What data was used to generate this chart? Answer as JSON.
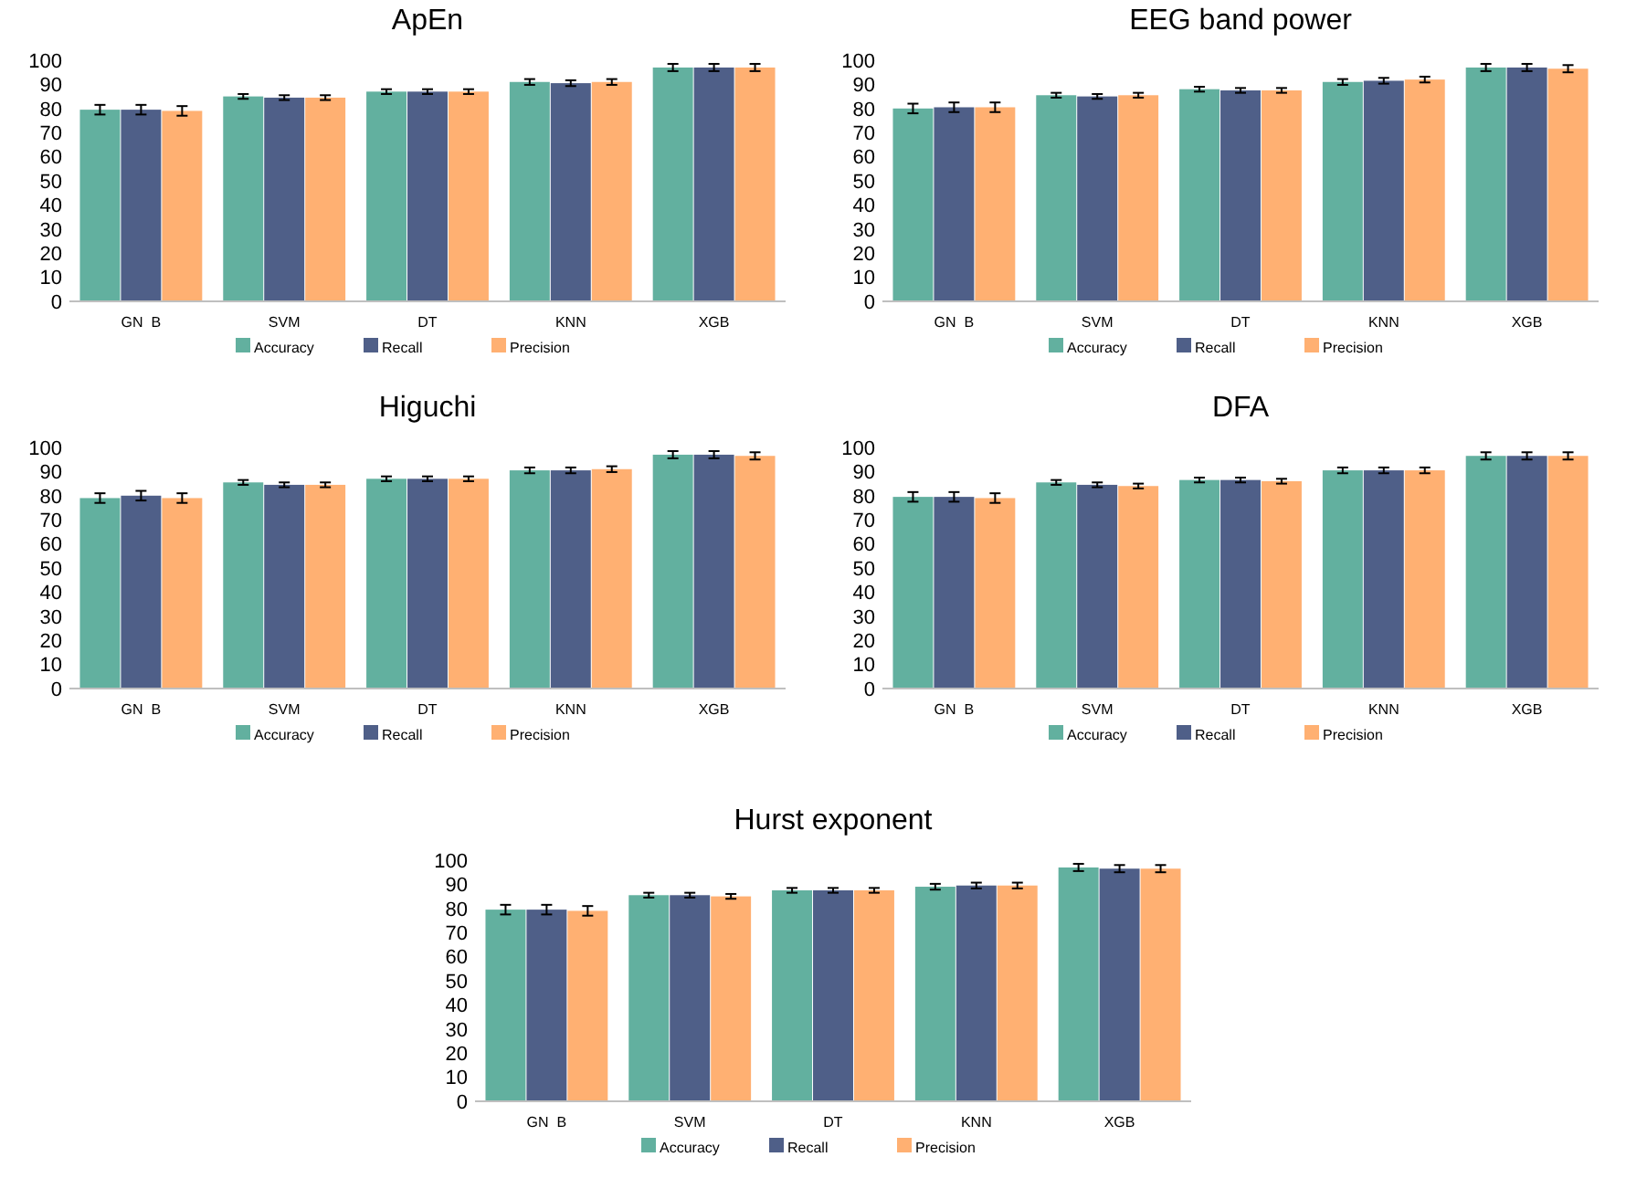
{
  "chart_data": [
    {
      "type": "bar",
      "title": "ApEn",
      "categories": [
        "GN  B",
        "SVM",
        "DT",
        "KNN",
        "XGB"
      ],
      "ylim": [
        0,
        100
      ],
      "yticks": [
        0,
        10,
        20,
        30,
        40,
        50,
        60,
        70,
        80,
        90,
        100
      ],
      "grid": false,
      "legend": "bottom",
      "series": [
        {
          "name": "Accuracy",
          "color": "#62b09f",
          "values": [
            79.5,
            85,
            87,
            91,
            97
          ],
          "errors": [
            2,
            1,
            1,
            1.2,
            1.5
          ]
        },
        {
          "name": "Recall",
          "color": "#4f5f88",
          "values": [
            79.5,
            84.5,
            87,
            90.5,
            97
          ],
          "errors": [
            2,
            1,
            1,
            1.2,
            1.5
          ]
        },
        {
          "name": "Precision",
          "color": "#ffb072",
          "values": [
            79,
            84.5,
            87,
            91,
            97
          ],
          "errors": [
            2,
            1,
            1,
            1.2,
            1.5
          ]
        }
      ]
    },
    {
      "type": "bar",
      "title": "EEG band power",
      "categories": [
        "GN  B",
        "SVM",
        "DT",
        "KNN",
        "XGB"
      ],
      "ylim": [
        0,
        100
      ],
      "yticks": [
        0,
        10,
        20,
        30,
        40,
        50,
        60,
        70,
        80,
        90,
        100
      ],
      "grid": false,
      "legend": "bottom",
      "series": [
        {
          "name": "Accuracy",
          "color": "#62b09f",
          "values": [
            80,
            85.5,
            88,
            91,
            97
          ],
          "errors": [
            2,
            1,
            1,
            1.2,
            1.5
          ]
        },
        {
          "name": "Recall",
          "color": "#4f5f88",
          "values": [
            80.5,
            85,
            87.5,
            91.5,
            97
          ],
          "errors": [
            2,
            1,
            1,
            1.2,
            1.5
          ]
        },
        {
          "name": "Precision",
          "color": "#ffb072",
          "values": [
            80.5,
            85.5,
            87.5,
            92,
            96.5
          ],
          "errors": [
            2,
            1,
            1,
            1.2,
            1.5
          ]
        }
      ]
    },
    {
      "type": "bar",
      "title": "Higuchi",
      "categories": [
        "GN  B",
        "SVM",
        "DT",
        "KNN",
        "XGB"
      ],
      "ylim": [
        0,
        100
      ],
      "yticks": [
        0,
        10,
        20,
        30,
        40,
        50,
        60,
        70,
        80,
        90,
        100
      ],
      "grid": false,
      "legend": "bottom",
      "series": [
        {
          "name": "Accuracy",
          "color": "#62b09f",
          "values": [
            79,
            85.5,
            87,
            90.5,
            97
          ],
          "errors": [
            2,
            1,
            1,
            1.2,
            1.5
          ]
        },
        {
          "name": "Recall",
          "color": "#4f5f88",
          "values": [
            80,
            84.5,
            87,
            90.5,
            97
          ],
          "errors": [
            2,
            1,
            1,
            1.2,
            1.5
          ]
        },
        {
          "name": "Precision",
          "color": "#ffb072",
          "values": [
            79,
            84.5,
            87,
            91,
            96.5
          ],
          "errors": [
            2,
            1,
            1,
            1.2,
            1.5
          ]
        }
      ]
    },
    {
      "type": "bar",
      "title": "DFA",
      "categories": [
        "GN  B",
        "SVM",
        "DT",
        "KNN",
        "XGB"
      ],
      "ylim": [
        0,
        100
      ],
      "yticks": [
        0,
        10,
        20,
        30,
        40,
        50,
        60,
        70,
        80,
        90,
        100
      ],
      "grid": false,
      "legend": "bottom",
      "series": [
        {
          "name": "Accuracy",
          "color": "#62b09f",
          "values": [
            79.5,
            85.5,
            86.5,
            90.5,
            96.5
          ],
          "errors": [
            2,
            1,
            1,
            1.2,
            1.5
          ]
        },
        {
          "name": "Recall",
          "color": "#4f5f88",
          "values": [
            79.5,
            84.5,
            86.5,
            90.5,
            96.5
          ],
          "errors": [
            2,
            1,
            1,
            1.2,
            1.5
          ]
        },
        {
          "name": "Precision",
          "color": "#ffb072",
          "values": [
            79,
            84,
            86,
            90.5,
            96.5
          ],
          "errors": [
            2,
            1,
            1,
            1.2,
            1.5
          ]
        }
      ]
    },
    {
      "type": "bar",
      "title": "Hurst exponent",
      "categories": [
        "GN  B",
        "SVM",
        "DT",
        "KNN",
        "XGB"
      ],
      "ylim": [
        0,
        100
      ],
      "yticks": [
        0,
        10,
        20,
        30,
        40,
        50,
        60,
        70,
        80,
        90,
        100
      ],
      "grid": false,
      "legend": "bottom",
      "series": [
        {
          "name": "Accuracy",
          "color": "#62b09f",
          "values": [
            79.5,
            85.5,
            87.5,
            89,
            97
          ],
          "errors": [
            2,
            1,
            1,
            1.2,
            1.5
          ]
        },
        {
          "name": "Recall",
          "color": "#4f5f88",
          "values": [
            79.5,
            85.5,
            87.5,
            89.5,
            96.5
          ],
          "errors": [
            2,
            1,
            1,
            1.2,
            1.5
          ]
        },
        {
          "name": "Precision",
          "color": "#ffb072",
          "values": [
            79,
            85,
            87.5,
            89.5,
            96.5
          ],
          "errors": [
            2,
            1,
            1,
            1.2,
            1.5
          ]
        }
      ]
    }
  ]
}
